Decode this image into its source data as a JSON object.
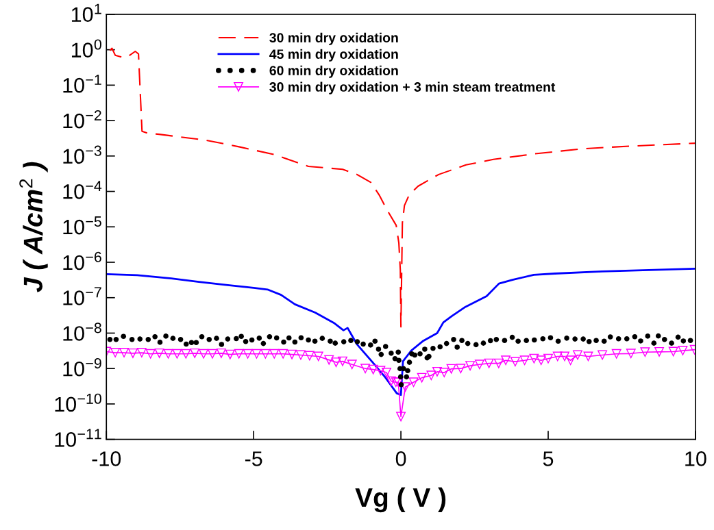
{
  "chart_data": {
    "type": "line",
    "xlabel": "Vg ( V )",
    "ylabel": "J ( A/cm$^{2}$ )",
    "log": "y",
    "grid": false,
    "legend": "top",
    "xlim": [
      -10,
      10
    ],
    "xticks": [
      -10,
      -5,
      0,
      5,
      10
    ],
    "ylim": [
      1e-11,
      10
    ],
    "yticks": [
      {
        "value": 1e-11,
        "label": "10$^{−11}$"
      },
      {
        "value": 1e-10,
        "label": "10$^{−10}$"
      },
      {
        "value": 1e-09,
        "label": "10$^{−9}$"
      },
      {
        "value": 1e-08,
        "label": "10$^{−8}$"
      },
      {
        "value": 1e-07,
        "label": "10$^{−7}$"
      },
      {
        "value": 1e-06,
        "label": "10$^{−6}$"
      },
      {
        "value": 1e-05,
        "label": "10$^{−5}$"
      },
      {
        "value": 0.0001,
        "label": "10$^{−4}$"
      },
      {
        "value": 0.001,
        "label": "10$^{−3}$"
      },
      {
        "value": 0.01,
        "label": "10$^{−2}$"
      },
      {
        "value": 0.1,
        "label": "10$^{−1}$"
      },
      {
        "value": 1,
        "label": "10$^{0}$"
      },
      {
        "value": 10,
        "label": "10$^{1}$"
      }
    ],
    "series": [
      {
        "name": "30 min dry oxidation",
        "type": "line",
        "color": "#ff0000",
        "line_style": "dashed",
        "marker": "none",
        "x": [
          -9.88,
          -9.81,
          -9.7,
          -9.42,
          -9.3,
          -9.02,
          -8.91,
          -8.79,
          -8.6,
          -8.21,
          -6.63,
          -5.47,
          -4.3,
          -3.14,
          -1.98,
          -1.49,
          -1.02,
          -0.74,
          -0.49,
          -0.16,
          -0.07,
          -0.02,
          0,
          0.05,
          0.12,
          0.28,
          0.58,
          1.28,
          2.21,
          3.14,
          4.53,
          6.16,
          7.79,
          10
        ],
        "values": [
          0.95,
          1.1,
          0.7,
          0.6,
          0.62,
          0.9,
          0.76,
          0.005,
          0.0044,
          0.0041,
          0.0028,
          0.0018,
          0.0011,
          0.00051,
          0.00042,
          0.0003,
          0.00018,
          8e-05,
          3.2e-05,
          1.1e-05,
          3.5e-06,
          6e-07,
          1.5e-08,
          1.3e-05,
          4e-05,
          8e-05,
          0.00014,
          0.0003,
          0.00056,
          0.0008,
          0.00115,
          0.0016,
          0.0019,
          0.0023
        ]
      },
      {
        "name": "45 min dry oxidation",
        "type": "line",
        "color": "#0000ff",
        "line_style": "solid",
        "marker": "none",
        "x": [
          -10,
          -8.95,
          -7.79,
          -6.86,
          -5.93,
          -5.0,
          -4.53,
          -4.07,
          -3.6,
          -2.91,
          -2.28,
          -1.95,
          -1.81,
          -1.49,
          -0.93,
          -0.53,
          -0.14,
          0,
          0.07,
          0.35,
          0.74,
          1.23,
          1.44,
          1.72,
          2.19,
          2.91,
          3.33,
          3.79,
          4.51,
          5.23,
          6.84,
          8.42,
          10
        ],
        "values": [
          4.6e-07,
          4.3e-07,
          3.5e-07,
          2.8e-07,
          2.3e-07,
          1.9e-07,
          1.7e-07,
          1.2e-07,
          6.5e-08,
          3.8e-08,
          1.95e-08,
          1.2e-08,
          1.4e-08,
          4.8e-09,
          1.4e-09,
          5.6e-10,
          2e-10,
          1.8e-10,
          1.6e-09,
          3.2e-09,
          5.9e-09,
          1e-08,
          2e-08,
          3e-08,
          5.5e-08,
          1.1e-07,
          2.5e-07,
          3.2e-07,
          4.4e-07,
          4.8e-07,
          5.5e-07,
          6e-07,
          6.6e-07
        ]
      },
      {
        "name": "60 min dry oxidation",
        "type": "scatter",
        "color": "#000000",
        "marker": "circle",
        "x": [
          -9.88,
          -9.67,
          -9.42,
          -9.13,
          -8.86,
          -8.58,
          -8.35,
          -8.18,
          -7.98,
          -7.74,
          -7.48,
          -7.29,
          -7.11,
          -6.95,
          -6.76,
          -6.51,
          -6.26,
          -6.09,
          -5.88,
          -5.59,
          -5.42,
          -5.27,
          -5.06,
          -4.81,
          -4.67,
          -4.46,
          -4.22,
          -3.98,
          -3.8,
          -3.6,
          -3.39,
          -3.14,
          -2.92,
          -2.67,
          -2.4,
          -2.23,
          -1.94,
          -1.7,
          -1.48,
          -1.28,
          -1.03,
          -0.88,
          -0.76,
          -0.67,
          -0.52,
          -0.33,
          -0.2,
          -0.09,
          -0.07,
          -0.03,
          -0.01,
          0.01,
          0.09,
          0.19,
          0.23,
          0.29,
          0.37,
          0.47,
          0.65,
          0.81,
          0.89,
          0.95,
          1.09,
          1.33,
          1.55,
          1.79,
          1.91,
          2.07,
          2.27,
          2.55,
          2.8,
          3.04,
          3.24,
          3.52,
          3.78,
          3.98,
          4.26,
          4.53,
          4.82,
          5.08,
          5.34,
          5.63,
          5.91,
          6.19,
          6.39,
          6.63,
          6.9,
          7.11,
          7.39,
          7.67,
          7.94,
          8.14,
          8.38,
          8.59,
          8.74,
          8.95,
          9.19,
          9.41,
          9.59,
          9.83
        ],
        "values": [
          6.6e-09,
          6.6e-09,
          8.1e-09,
          6.6e-09,
          6.8e-09,
          6.6e-09,
          7.9e-09,
          5.5e-09,
          8.2e-09,
          7.1e-09,
          6.6e-09,
          4.9e-09,
          5.4e-09,
          5.4e-09,
          7.9e-09,
          6.6e-09,
          7.1e-09,
          4.8e-09,
          6.8e-09,
          7e-09,
          8.1e-09,
          5.8e-09,
          6.4e-09,
          7.2e-09,
          5.1e-09,
          7.9e-09,
          7.3e-09,
          5.6e-09,
          7.3e-09,
          5.6e-09,
          7.4e-09,
          6.4e-09,
          5.9e-09,
          7.1e-09,
          5.9e-09,
          5.2e-09,
          5.7e-09,
          6.2e-09,
          5.7e-09,
          4.9e-09,
          4.6e-09,
          5.9e-09,
          3.5e-09,
          2.5e-09,
          4.2e-09,
          2.7e-09,
          1.9e-09,
          2.9e-09,
          1.7e-09,
          9.9e-10,
          5.8e-10,
          3.5e-10,
          9.9e-10,
          5.8e-10,
          8.7e-10,
          1.5e-09,
          2.6e-09,
          2.4e-09,
          2.6e-09,
          3.5e-09,
          2e-09,
          2.2e-09,
          3.7e-09,
          4.1e-09,
          5.1e-09,
          6.6e-09,
          4e-09,
          6.2e-09,
          5.1e-09,
          4.7e-09,
          5.2e-09,
          6.1e-09,
          6.6e-09,
          6.2e-09,
          7.6e-09,
          5.9e-09,
          6.2e-09,
          6.4e-09,
          6.9e-09,
          7.4e-09,
          5.9e-09,
          7.2e-09,
          6.8e-09,
          6.8e-09,
          5.8e-09,
          6.2e-09,
          5.9e-09,
          7.8e-09,
          6.9e-09,
          6.9e-09,
          7.9e-09,
          6e-09,
          8.2e-09,
          5.2e-09,
          8.3e-09,
          6.6e-09,
          5.2e-09,
          7.7e-09,
          6e-09,
          6.2e-09
        ]
      },
      {
        "name": "30 min dry oxidation + 3 min steam treatment",
        "type": "line",
        "color": "#ff00ff",
        "line_style": "solid",
        "marker": "triangle",
        "x": [
          -10,
          -9.7,
          -9.4,
          -9.1,
          -8.8,
          -8.5,
          -8.2,
          -7.9,
          -7.6,
          -7.3,
          -7.0,
          -6.7,
          -6.4,
          -6.1,
          -5.8,
          -5.5,
          -5.2,
          -4.9,
          -4.6,
          -4.3,
          -4.0,
          -3.7,
          -3.4,
          -3.1,
          -2.8,
          -2.44,
          -2.2,
          -1.98,
          -1.66,
          -1.21,
          -0.94,
          -0.69,
          -0.49,
          -0.33,
          -0.17,
          -0.09,
          0,
          0.15,
          0.43,
          0.71,
          1.03,
          1.23,
          1.47,
          1.71,
          2.03,
          2.35,
          2.67,
          2.99,
          3.32,
          3.56,
          3.88,
          4.2,
          4.52,
          4.76,
          5.0,
          5.32,
          5.56,
          5.76,
          6.0,
          6.36,
          6.84,
          7.32,
          7.81,
          8.29,
          8.77,
          9.25,
          9.57,
          9.97
        ],
        "values": [
          3e-09,
          2.8e-09,
          2.8e-09,
          2.7e-09,
          2.8e-09,
          2.6e-09,
          2.7e-09,
          2.6e-09,
          2.6e-09,
          2.6e-09,
          2.7e-09,
          2.6e-09,
          2.6e-09,
          2.7e-09,
          2.5e-09,
          2.6e-09,
          2.6e-09,
          2.6e-09,
          2.6e-09,
          2.6e-09,
          2.6e-09,
          2.5e-09,
          2.4e-09,
          2.3e-09,
          2.2e-09,
          1.75e-09,
          1.5e-09,
          1.6e-09,
          1.3e-09,
          1e-09,
          9.4e-10,
          8.7e-10,
          7.7e-10,
          4.4e-10,
          4.1e-10,
          4.1e-10,
          4.4e-11,
          3e-10,
          4.1e-10,
          5.5e-10,
          6.4e-10,
          8.1e-10,
          7.7e-10,
          9.8e-10,
          1e-09,
          1.2e-09,
          1.3e-09,
          1.4e-09,
          1.4e-09,
          1.7e-09,
          1.56e-09,
          1.7e-09,
          1.9e-09,
          1.7e-09,
          1.9e-09,
          2.2e-09,
          2.2e-09,
          1.7e-09,
          2.4e-09,
          2.2e-09,
          2.4e-09,
          2.6e-09,
          2.65e-09,
          2.9e-09,
          2.95e-09,
          3e-09,
          3.2e-09,
          3.4e-09
        ]
      }
    ]
  }
}
